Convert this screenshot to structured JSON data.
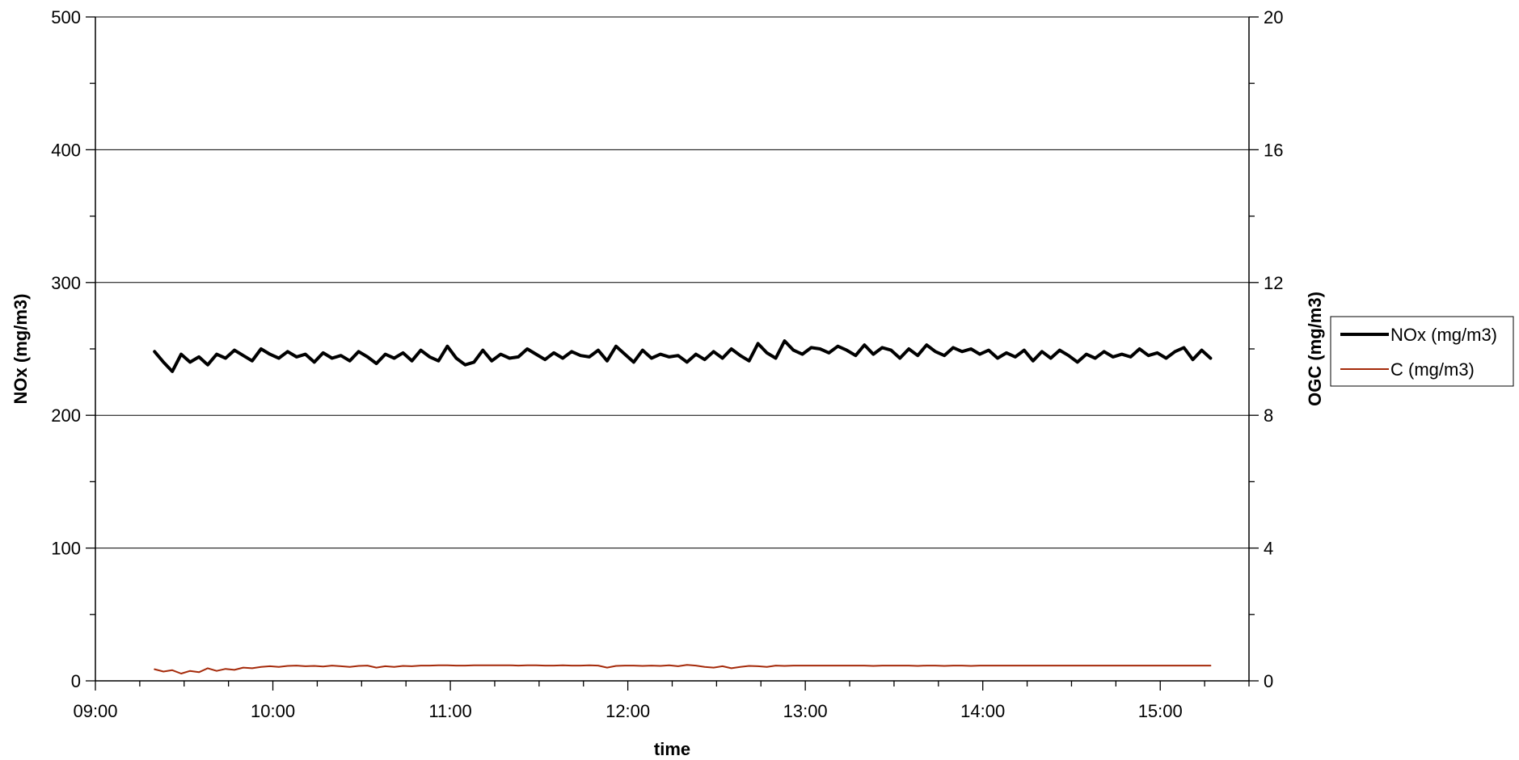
{
  "chart_data": {
    "type": "line",
    "title": "",
    "xlabel": "time",
    "ylabel_left": "NOx (mg/m3)",
    "ylabel_right": "OGC (mg/m3)",
    "x_ticks": [
      "09:00",
      "10:00",
      "11:00",
      "12:00",
      "13:00",
      "14:00",
      "15:00"
    ],
    "x_range_hours": [
      9.0,
      15.5
    ],
    "y_left_range": [
      0,
      500
    ],
    "y_left_ticks": [
      0,
      100,
      200,
      300,
      400,
      500
    ],
    "y_right_range": [
      0,
      20
    ],
    "y_right_ticks": [
      0,
      4,
      8,
      12,
      16,
      20
    ],
    "grid": true,
    "legend_position": "right",
    "series": [
      {
        "name": "NOx (mg/m3)",
        "axis": "left",
        "color": "#000000",
        "x": [
          "09:20",
          "09:23",
          "09:26",
          "09:29",
          "09:32",
          "09:35",
          "09:38",
          "09:41",
          "09:44",
          "09:47",
          "09:50",
          "09:53",
          "09:56",
          "09:59",
          "10:02",
          "10:05",
          "10:08",
          "10:11",
          "10:14",
          "10:17",
          "10:20",
          "10:23",
          "10:26",
          "10:29",
          "10:32",
          "10:35",
          "10:38",
          "10:41",
          "10:44",
          "10:47",
          "10:50",
          "10:53",
          "10:56",
          "10:59",
          "11:02",
          "11:05",
          "11:08",
          "11:11",
          "11:14",
          "11:17",
          "11:20",
          "11:23",
          "11:26",
          "11:29",
          "11:32",
          "11:35",
          "11:38",
          "11:41",
          "11:44",
          "11:47",
          "11:50",
          "11:53",
          "11:56",
          "11:59",
          "12:02",
          "12:05",
          "12:08",
          "12:11",
          "12:14",
          "12:17",
          "12:20",
          "12:23",
          "12:26",
          "12:29",
          "12:32",
          "12:35",
          "12:38",
          "12:41",
          "12:44",
          "12:47",
          "12:50",
          "12:53",
          "12:56",
          "12:59",
          "13:02",
          "13:05",
          "13:08",
          "13:11",
          "13:14",
          "13:17",
          "13:20",
          "13:23",
          "13:26",
          "13:29",
          "13:32",
          "13:35",
          "13:38",
          "13:41",
          "13:44",
          "13:47",
          "13:50",
          "13:53",
          "13:56",
          "13:59",
          "14:02",
          "14:05",
          "14:08",
          "14:11",
          "14:14",
          "14:17",
          "14:20",
          "14:23",
          "14:26",
          "14:29",
          "14:32",
          "14:35",
          "14:38",
          "14:41",
          "14:44",
          "14:47",
          "14:50",
          "14:53",
          "14:56",
          "14:59",
          "15:02",
          "15:05",
          "15:08",
          "15:11",
          "15:14",
          "15:17"
        ],
        "values": [
          248,
          240,
          233,
          246,
          240,
          244,
          238,
          246,
          243,
          249,
          245,
          241,
          250,
          246,
          243,
          248,
          244,
          246,
          240,
          247,
          243,
          245,
          241,
          248,
          244,
          239,
          246,
          243,
          247,
          241,
          249,
          244,
          241,
          252,
          243,
          238,
          240,
          249,
          241,
          246,
          243,
          244,
          250,
          246,
          242,
          247,
          243,
          248,
          245,
          244,
          249,
          241,
          252,
          246,
          240,
          249,
          243,
          246,
          244,
          245,
          240,
          246,
          242,
          248,
          243,
          250,
          245,
          241,
          254,
          247,
          243,
          256,
          249,
          246,
          251,
          250,
          247,
          252,
          249,
          245,
          253,
          246,
          251,
          249,
          243,
          250,
          245,
          253,
          248,
          245,
          251,
          248,
          250,
          246,
          249,
          243,
          247,
          244,
          249,
          241,
          248,
          243,
          249,
          245,
          240,
          246,
          243,
          248,
          244,
          246,
          244,
          250,
          245,
          247,
          243,
          248,
          251,
          242,
          249,
          243
        ],
        "line_width": 4
      },
      {
        "name": "C (mg/m3)",
        "axis": "right",
        "color": "#a52a0a",
        "x": [
          "09:20",
          "09:23",
          "09:26",
          "09:29",
          "09:32",
          "09:35",
          "09:38",
          "09:41",
          "09:44",
          "09:47",
          "09:50",
          "09:53",
          "09:56",
          "09:59",
          "10:02",
          "10:05",
          "10:08",
          "10:11",
          "10:14",
          "10:17",
          "10:20",
          "10:23",
          "10:26",
          "10:29",
          "10:32",
          "10:35",
          "10:38",
          "10:41",
          "10:44",
          "10:47",
          "10:50",
          "10:53",
          "10:56",
          "10:59",
          "11:02",
          "11:05",
          "11:08",
          "11:11",
          "11:14",
          "11:17",
          "11:20",
          "11:23",
          "11:26",
          "11:29",
          "11:32",
          "11:35",
          "11:38",
          "11:41",
          "11:44",
          "11:47",
          "11:50",
          "11:53",
          "11:56",
          "11:59",
          "12:02",
          "12:05",
          "12:08",
          "12:11",
          "12:14",
          "12:17",
          "12:20",
          "12:23",
          "12:26",
          "12:29",
          "12:32",
          "12:35",
          "12:38",
          "12:41",
          "12:44",
          "12:47",
          "12:50",
          "12:53",
          "12:56",
          "12:59",
          "13:02",
          "13:05",
          "13:08",
          "13:11",
          "13:14",
          "13:17",
          "13:20",
          "13:23",
          "13:26",
          "13:29",
          "13:32",
          "13:35",
          "13:38",
          "13:41",
          "13:44",
          "13:47",
          "13:50",
          "13:53",
          "13:56",
          "13:59",
          "14:02",
          "14:05",
          "14:08",
          "14:11",
          "14:14",
          "14:17",
          "14:20",
          "14:23",
          "14:26",
          "14:29",
          "14:32",
          "14:35",
          "14:38",
          "14:41",
          "14:44",
          "14:47",
          "14:50",
          "14:53",
          "14:56",
          "14:59",
          "15:02",
          "15:05",
          "15:08",
          "15:11",
          "15:14",
          "15:17"
        ],
        "values": [
          0.35,
          0.28,
          0.32,
          0.22,
          0.3,
          0.26,
          0.38,
          0.3,
          0.36,
          0.33,
          0.4,
          0.38,
          0.42,
          0.44,
          0.42,
          0.45,
          0.46,
          0.44,
          0.45,
          0.43,
          0.46,
          0.44,
          0.42,
          0.45,
          0.46,
          0.4,
          0.44,
          0.42,
          0.45,
          0.44,
          0.46,
          0.46,
          0.47,
          0.47,
          0.46,
          0.46,
          0.47,
          0.47,
          0.47,
          0.47,
          0.47,
          0.46,
          0.47,
          0.47,
          0.46,
          0.46,
          0.47,
          0.46,
          0.46,
          0.47,
          0.46,
          0.4,
          0.45,
          0.46,
          0.46,
          0.45,
          0.46,
          0.45,
          0.47,
          0.44,
          0.48,
          0.46,
          0.42,
          0.4,
          0.44,
          0.38,
          0.42,
          0.45,
          0.44,
          0.42,
          0.46,
          0.45,
          0.46,
          0.46,
          0.46,
          0.46,
          0.46,
          0.46,
          0.46,
          0.46,
          0.46,
          0.45,
          0.46,
          0.46,
          0.46,
          0.46,
          0.45,
          0.46,
          0.46,
          0.45,
          0.46,
          0.46,
          0.45,
          0.46,
          0.46,
          0.46,
          0.46,
          0.46,
          0.46,
          0.46,
          0.46,
          0.46,
          0.46,
          0.46,
          0.46,
          0.46,
          0.46,
          0.46,
          0.46,
          0.46,
          0.46,
          0.46,
          0.46,
          0.46,
          0.46,
          0.46,
          0.46,
          0.46,
          0.46,
          0.46
        ],
        "line_width": 2
      }
    ]
  }
}
